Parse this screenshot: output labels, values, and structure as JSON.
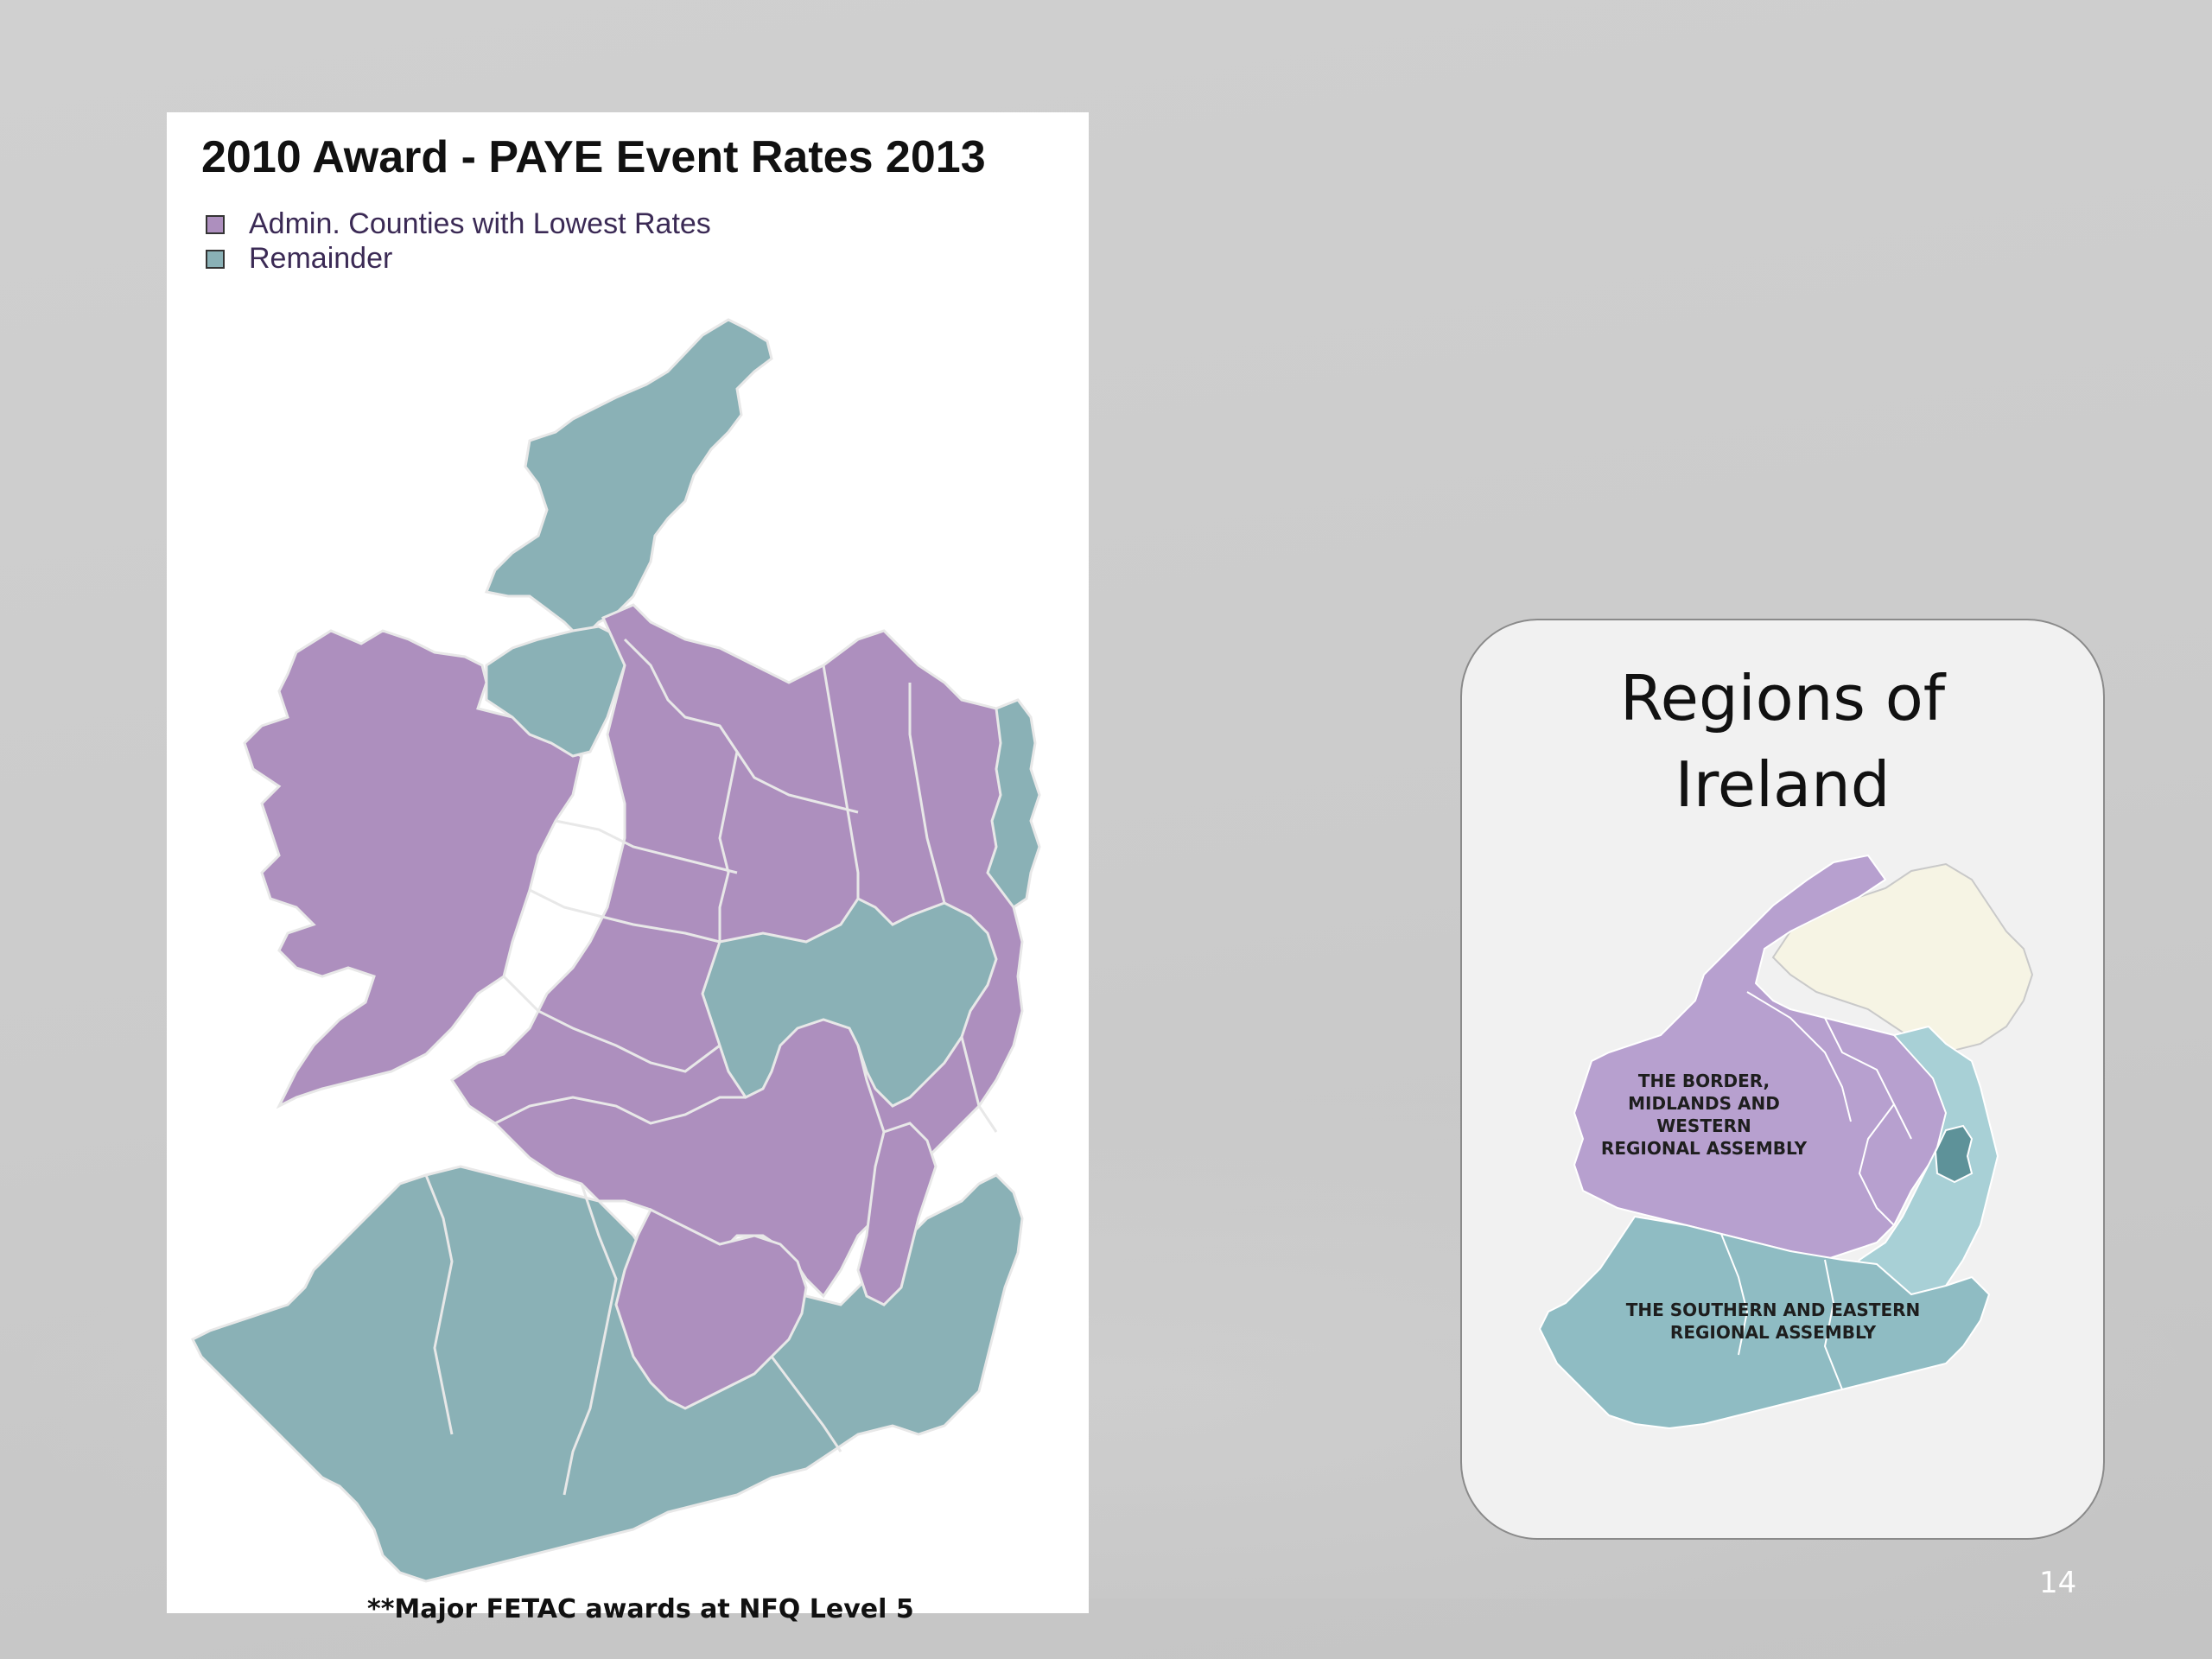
{
  "slide": {
    "page_number": "14",
    "footnote": "**Major FETAC awards at NFQ Level 5"
  },
  "main_map": {
    "title": "2010 Award - PAYE Event Rates 2013",
    "legend": [
      {
        "label": "Admin. Counties with Lowest Rates",
        "color": "#ad8fbe"
      },
      {
        "label": "Remainder",
        "color": "#8ab1b6"
      }
    ],
    "colors": {
      "lowest": "#ad8fbe",
      "remainder": "#8ab1b6",
      "border": "#e8e8e8"
    }
  },
  "regions_card": {
    "title": "Regions of\nIreland",
    "regions": [
      {
        "label": "THE BORDER,\nMIDLANDS AND WESTERN\nREGIONAL ASSEMBLY",
        "color": "#b7a0cf"
      },
      {
        "label": "THE SOUTHERN AND EASTERN\nREGIONAL ASSEMBLY",
        "color": "#8fbcc3"
      }
    ],
    "colors": {
      "bmw": "#b7a0cf",
      "southern": "#8fbcc3",
      "southern_light": "#a8d0d6",
      "dublin": "#5e9299",
      "northern_ireland": "#f6f4e4"
    }
  }
}
